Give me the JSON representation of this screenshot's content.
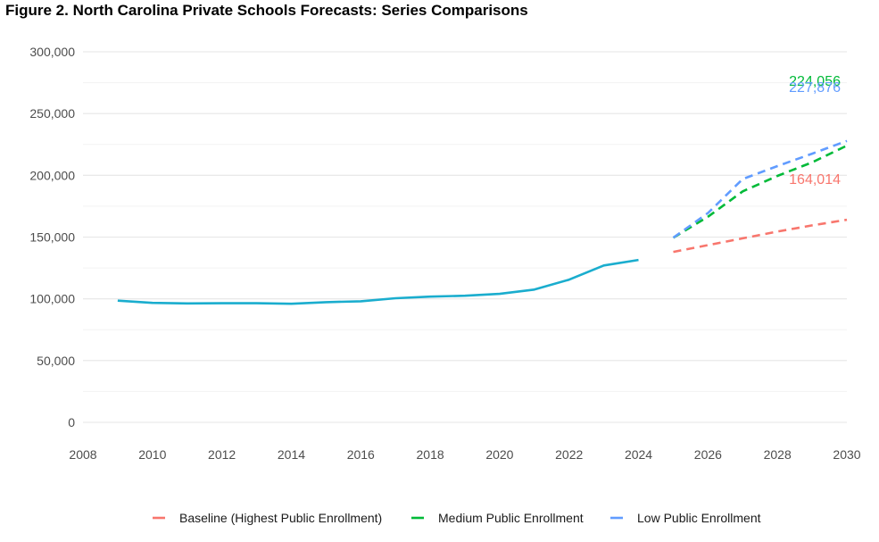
{
  "title": "Figure 2. North Carolina Private Schools Forecasts: Series Comparisons",
  "chart_data": {
    "type": "line",
    "title": "Figure 2. North Carolina Private Schools Forecasts: Series Comparisons",
    "xlim": [
      2008,
      2030
    ],
    "ylim": [
      0,
      300000
    ],
    "x_ticks": [
      2008,
      2010,
      2012,
      2014,
      2016,
      2018,
      2020,
      2022,
      2024,
      2026,
      2028,
      2030
    ],
    "x_tick_labels": [
      "2008",
      "2010",
      "2012",
      "2014",
      "2016",
      "2018",
      "2020",
      "2022",
      "2024",
      "2026",
      "2028",
      "2030"
    ],
    "y_ticks": [
      0,
      50000,
      100000,
      150000,
      200000,
      250000,
      300000
    ],
    "y_tick_labels": [
      "0",
      "50,000",
      "100,000",
      "150,000",
      "200,000",
      "250,000",
      "300,000"
    ],
    "grid": true,
    "legend_position": "bottom",
    "historical": {
      "color": "#1aadce",
      "style": "solid",
      "x": [
        2009,
        2010,
        2011,
        2012,
        2013,
        2014,
        2015,
        2016,
        2017,
        2018,
        2019,
        2020,
        2021,
        2022,
        2023,
        2024
      ],
      "values": [
        98500,
        96700,
        96300,
        96400,
        96400,
        96000,
        97300,
        98000,
        100500,
        101800,
        102500,
        104000,
        107500,
        115500,
        127000,
        131500
      ]
    },
    "series": [
      {
        "name": "Baseline (Highest Public Enrollment)",
        "color": "#f8766d",
        "style": "dashed",
        "x": [
          2025,
          2026,
          2027,
          2028,
          2029,
          2030
        ],
        "values": [
          138000,
          143500,
          149000,
          154500,
          159500,
          164014
        ],
        "end_label": "164,014"
      },
      {
        "name": "Medium Public Enrollment",
        "color": "#00ba38",
        "style": "dashed",
        "x": [
          2025,
          2026,
          2027,
          2028,
          2029,
          2030
        ],
        "values": [
          149500,
          166500,
          187000,
          199500,
          210500,
          224056
        ],
        "end_label": "224,056"
      },
      {
        "name": "Low Public Enrollment",
        "color": "#619cff",
        "style": "dashed",
        "x": [
          2025,
          2026,
          2027,
          2028,
          2029,
          2030
        ],
        "values": [
          149500,
          169500,
          197000,
          207500,
          217500,
          227876
        ],
        "end_label": "227,876"
      }
    ]
  }
}
